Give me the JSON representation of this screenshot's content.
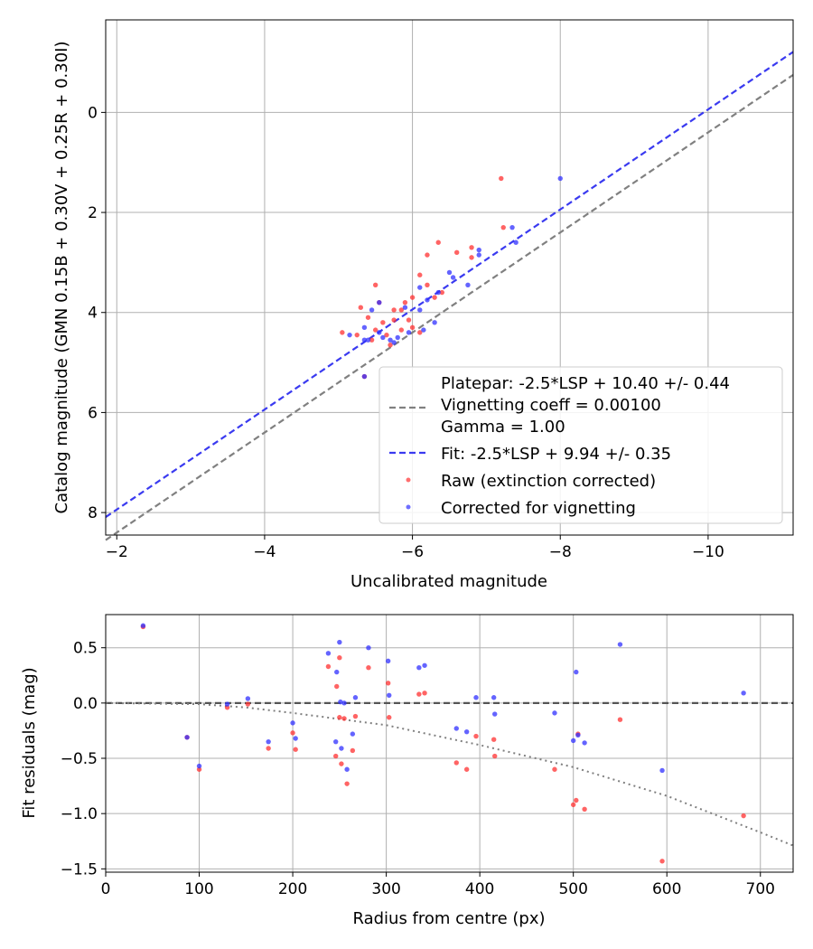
{
  "chart_data": [
    {
      "type": "scatter",
      "xlabel": "Uncalibrated magnitude",
      "ylabel": "Catalog magnitude (GMN 0.15B + 0.30V + 0.25R + 0.30I)",
      "xlim": [
        -1.85,
        -11.15
      ],
      "ylim": [
        8.45,
        -1.85
      ],
      "x_ticks": [
        -2,
        -4,
        -6,
        -8,
        -10
      ],
      "x_tick_labels": [
        "−2",
        "−4",
        "−6",
        "−8",
        "−10"
      ],
      "y_ticks": [
        0,
        2,
        4,
        6,
        8
      ],
      "y_tick_labels": [
        "0",
        "2",
        "4",
        "6",
        "8"
      ],
      "grid": true,
      "legend_position": "lower-right",
      "legend": [
        {
          "label": "Platepar: -2.5*LSP + 10.40 +/- 0.44",
          "marker": "none"
        },
        {
          "label": "Vignetting coeff = 0.00100",
          "marker": "dashed-gray"
        },
        {
          "label": "Gamma = 1.00",
          "marker": "none"
        },
        {
          "label": "Fit: -2.5*LSP + 9.94 +/- 0.35",
          "marker": "dashed-blue"
        },
        {
          "label": "Raw (extinction corrected)",
          "marker": "dot-red"
        },
        {
          "label": "Corrected for vignetting",
          "marker": "dot-blue"
        }
      ],
      "lines": [
        {
          "name": "Platepar",
          "style": "dashed",
          "color": "#808080",
          "slope": 1,
          "intercept": 10.4
        },
        {
          "name": "Fit",
          "style": "dashed",
          "color": "#3a3af0",
          "slope": 1,
          "intercept": 9.94
        }
      ],
      "series": [
        {
          "name": "Raw (extinction corrected)",
          "color": "#ff3030",
          "points": [
            [
              -7.2,
              1.32
            ],
            [
              -7.23,
              2.3
            ],
            [
              -6.8,
              2.7
            ],
            [
              -6.6,
              2.8
            ],
            [
              -6.35,
              2.6
            ],
            [
              -6.2,
              2.85
            ],
            [
              -6.8,
              2.9
            ],
            [
              -6.1,
              3.25
            ],
            [
              -6.2,
              3.45
            ],
            [
              -6.4,
              3.6
            ],
            [
              -6.3,
              3.7
            ],
            [
              -6.0,
              3.7
            ],
            [
              -5.5,
              3.45
            ],
            [
              -5.55,
              3.8
            ],
            [
              -5.9,
              3.8
            ],
            [
              -5.85,
              3.95
            ],
            [
              -5.75,
              3.95
            ],
            [
              -5.3,
              3.9
            ],
            [
              -5.4,
              4.1
            ],
            [
              -5.6,
              4.2
            ],
            [
              -5.75,
              4.15
            ],
            [
              -5.95,
              4.15
            ],
            [
              -6.0,
              4.3
            ],
            [
              -5.5,
              4.35
            ],
            [
              -5.05,
              4.4
            ],
            [
              -5.25,
              4.45
            ],
            [
              -5.45,
              4.55
            ],
            [
              -5.65,
              4.45
            ],
            [
              -5.85,
              4.35
            ],
            [
              -6.1,
              4.4
            ],
            [
              -5.7,
              4.65
            ],
            [
              -5.35,
              5.28
            ]
          ]
        },
        {
          "name": "Corrected for vignetting",
          "color": "#3030ff",
          "points": [
            [
              -8.0,
              1.32
            ],
            [
              -7.35,
              2.3
            ],
            [
              -7.4,
              2.6
            ],
            [
              -6.9,
              2.75
            ],
            [
              -6.9,
              2.85
            ],
            [
              -6.75,
              3.45
            ],
            [
              -6.5,
              3.2
            ],
            [
              -6.55,
              3.3
            ],
            [
              -6.35,
              3.6
            ],
            [
              -6.1,
              3.5
            ],
            [
              -6.2,
              3.75
            ],
            [
              -6.1,
              3.95
            ],
            [
              -5.9,
              3.9
            ],
            [
              -5.55,
              3.8
            ],
            [
              -5.35,
              4.3
            ],
            [
              -5.45,
              3.95
            ],
            [
              -5.15,
              4.45
            ],
            [
              -5.4,
              4.55
            ],
            [
              -5.6,
              4.5
            ],
            [
              -5.75,
              4.6
            ],
            [
              -5.8,
              4.5
            ],
            [
              -6.15,
              4.35
            ],
            [
              -6.3,
              4.2
            ],
            [
              -5.95,
              4.4
            ],
            [
              -5.55,
              4.4
            ],
            [
              -5.35,
              4.55
            ],
            [
              -5.7,
              4.55
            ],
            [
              -5.35,
              5.28
            ]
          ]
        }
      ]
    },
    {
      "type": "scatter",
      "xlabel": "Radius from centre (px)",
      "ylabel": "Fit residuals (mag)",
      "xlim": [
        0,
        735
      ],
      "ylim": [
        -1.53,
        0.8
      ],
      "x_ticks": [
        0,
        100,
        200,
        300,
        400,
        500,
        600,
        700
      ],
      "x_tick_labels": [
        "0",
        "100",
        "200",
        "300",
        "400",
        "500",
        "600",
        "700"
      ],
      "y_ticks": [
        0.5,
        0.0,
        -0.5,
        -1.0,
        -1.5
      ],
      "y_tick_labels": [
        "0.5",
        "0.0",
        "−0.5",
        "−1.0",
        "−1.5"
      ],
      "grid": true,
      "lines": [
        {
          "name": "zero",
          "style": "dashed",
          "color": "#555555",
          "y": 0
        },
        {
          "name": "vignetting model",
          "style": "dotted",
          "color": "#7f7f7f",
          "curve": [
            [
              0,
              0
            ],
            [
              100,
              -0.01
            ],
            [
              150,
              -0.04
            ],
            [
              200,
              -0.09
            ],
            [
              300,
              -0.2
            ],
            [
              400,
              -0.38
            ],
            [
              500,
              -0.58
            ],
            [
              600,
              -0.84
            ],
            [
              700,
              -1.17
            ],
            [
              735,
              -1.29
            ]
          ]
        }
      ],
      "series": [
        {
          "name": "Raw (extinction corrected)",
          "color": "#ff3030",
          "points": [
            [
              40,
              0.69
            ],
            [
              87,
              -0.31
            ],
            [
              100,
              -0.6
            ],
            [
              130,
              -0.04
            ],
            [
              152,
              -0.01
            ],
            [
              174,
              -0.41
            ],
            [
              200,
              -0.27
            ],
            [
              203,
              -0.42
            ],
            [
              238,
              0.33
            ],
            [
              246,
              -0.48
            ],
            [
              247,
              0.15
            ],
            [
              250,
              0.41
            ],
            [
              250,
              -0.13
            ],
            [
              252,
              -0.55
            ],
            [
              255,
              -0.14
            ],
            [
              258,
              -0.73
            ],
            [
              264,
              -0.43
            ],
            [
              267,
              -0.12
            ],
            [
              281,
              0.32
            ],
            [
              302,
              0.18
            ],
            [
              303,
              -0.13
            ],
            [
              335,
              0.08
            ],
            [
              341,
              0.09
            ],
            [
              375,
              -0.54
            ],
            [
              386,
              -0.6
            ],
            [
              396,
              -0.3
            ],
            [
              415,
              -0.33
            ],
            [
              416,
              -0.48
            ],
            [
              480,
              -0.6
            ],
            [
              500,
              -0.92
            ],
            [
              503,
              -0.88
            ],
            [
              505,
              -0.28
            ],
            [
              512,
              -0.96
            ],
            [
              550,
              -0.15
            ],
            [
              595,
              -1.43
            ],
            [
              682,
              -1.02
            ]
          ]
        },
        {
          "name": "Corrected for vignetting",
          "color": "#3030ff",
          "points": [
            [
              40,
              0.7
            ],
            [
              87,
              -0.31
            ],
            [
              100,
              -0.57
            ],
            [
              130,
              -0.01
            ],
            [
              152,
              0.04
            ],
            [
              174,
              -0.35
            ],
            [
              200,
              -0.18
            ],
            [
              203,
              -0.32
            ],
            [
              238,
              0.45
            ],
            [
              246,
              -0.35
            ],
            [
              247,
              0.28
            ],
            [
              250,
              0.55
            ],
            [
              251,
              0.01
            ],
            [
              252,
              -0.41
            ],
            [
              255,
              0.0
            ],
            [
              258,
              -0.6
            ],
            [
              264,
              -0.28
            ],
            [
              267,
              0.05
            ],
            [
              281,
              0.5
            ],
            [
              302,
              0.38
            ],
            [
              303,
              0.07
            ],
            [
              335,
              0.32
            ],
            [
              341,
              0.34
            ],
            [
              375,
              -0.23
            ],
            [
              386,
              -0.26
            ],
            [
              396,
              0.05
            ],
            [
              415,
              0.05
            ],
            [
              416,
              -0.1
            ],
            [
              480,
              -0.09
            ],
            [
              500,
              -0.34
            ],
            [
              503,
              0.28
            ],
            [
              505,
              -0.29
            ],
            [
              512,
              -0.36
            ],
            [
              550,
              0.53
            ],
            [
              595,
              -0.61
            ],
            [
              682,
              0.09
            ]
          ]
        }
      ]
    }
  ]
}
